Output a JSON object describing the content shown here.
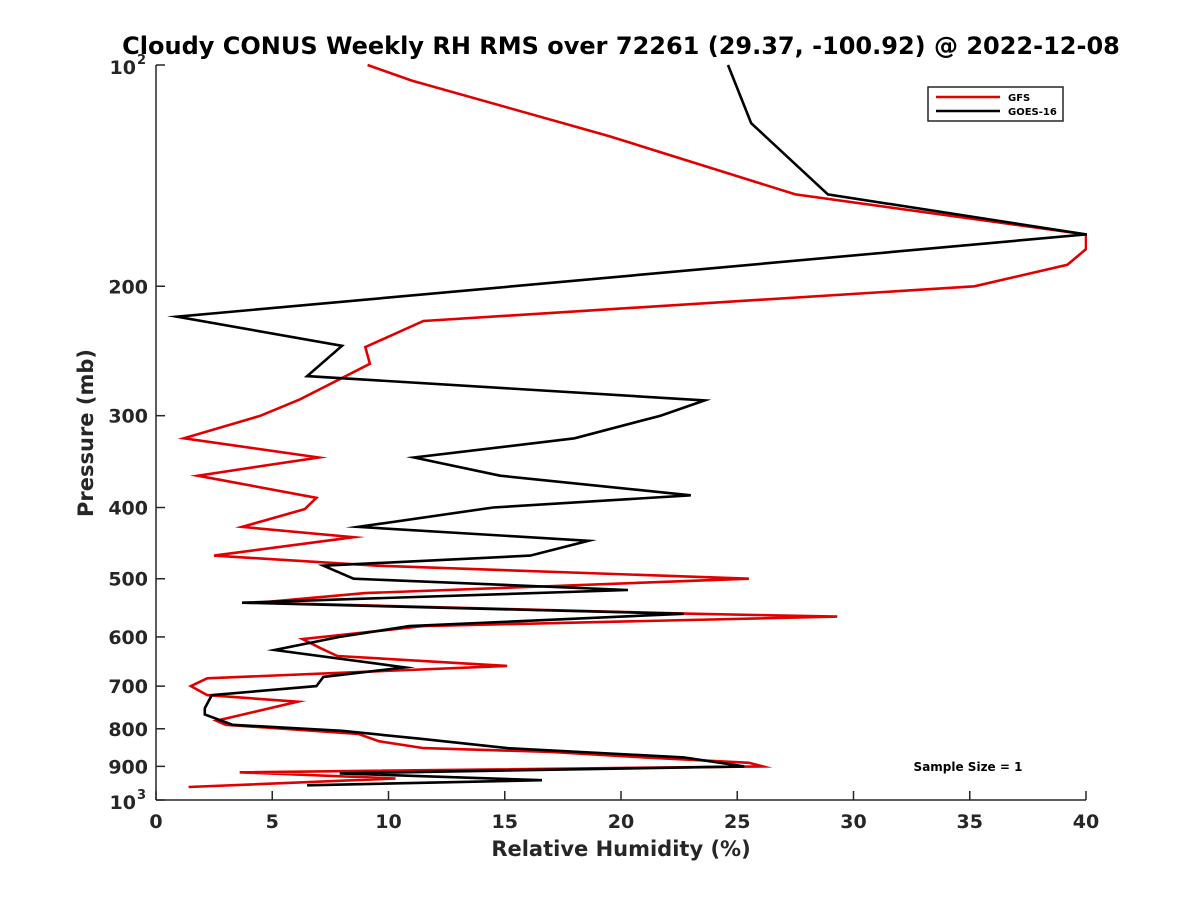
{
  "chart_data": {
    "type": "line",
    "title": "Cloudy CONUS Weekly RH RMS over 72261 (29.37, -100.92) @ 2022-12-08",
    "xlabel": "Relative Humidity (%)",
    "ylabel": "Pressure (mb)",
    "xlim": [
      0,
      40
    ],
    "ylim": [
      100,
      1000
    ],
    "y_scale": "log",
    "y_reversed": true,
    "grid": false,
    "legend_position": "top-right",
    "x_ticks": [
      "0",
      "5",
      "10",
      "15",
      "20",
      "25",
      "30",
      "35",
      "40"
    ],
    "y_ticks": [
      {
        "value": 100,
        "base": "10",
        "exp": "2"
      },
      {
        "value": 200,
        "label": "200"
      },
      {
        "value": 300,
        "label": "300"
      },
      {
        "value": 400,
        "label": "400"
      },
      {
        "value": 500,
        "label": "500"
      },
      {
        "value": 600,
        "label": "600"
      },
      {
        "value": 700,
        "label": "700"
      },
      {
        "value": 800,
        "label": "800"
      },
      {
        "value": 900,
        "label": "900"
      },
      {
        "value": 1000,
        "base": "10",
        "exp": "3"
      }
    ],
    "annotation": "Sample Size = 1",
    "series": [
      {
        "name": "GFS",
        "color": "#e00000",
        "points": [
          [
            9.1,
            100
          ],
          [
            11.0,
            105
          ],
          [
            19.5,
            125
          ],
          [
            27.5,
            150
          ],
          [
            40.0,
            170
          ],
          [
            40.0,
            178
          ],
          [
            39.2,
            187
          ],
          [
            35.2,
            200
          ],
          [
            11.5,
            223
          ],
          [
            9.0,
            242
          ],
          [
            9.2,
            255
          ],
          [
            6.2,
            285
          ],
          [
            4.5,
            300
          ],
          [
            1.2,
            322
          ],
          [
            7.0,
            342
          ],
          [
            1.8,
            362
          ],
          [
            6.9,
            388
          ],
          [
            6.4,
            402
          ],
          [
            3.7,
            425
          ],
          [
            8.5,
            439
          ],
          [
            2.5,
            465
          ],
          [
            9.5,
            480
          ],
          [
            25.5,
            500
          ],
          [
            9.0,
            523
          ],
          [
            4.4,
            539
          ],
          [
            23.2,
            558
          ],
          [
            29.3,
            563
          ],
          [
            11.5,
            580
          ],
          [
            6.3,
            604
          ],
          [
            7.1,
            622
          ],
          [
            7.8,
            637
          ],
          [
            15.1,
            657
          ],
          [
            2.2,
            683
          ],
          [
            1.5,
            700
          ],
          [
            2.2,
            720
          ],
          [
            6.1,
            735
          ],
          [
            2.6,
            780
          ],
          [
            3.0,
            790
          ],
          [
            8.7,
            813
          ],
          [
            9.6,
            832
          ],
          [
            11.5,
            850
          ],
          [
            17.0,
            860
          ],
          [
            21.0,
            875
          ],
          [
            25.5,
            890
          ],
          [
            26.1,
            900
          ],
          [
            3.6,
            917
          ],
          [
            10.3,
            935
          ],
          [
            1.4,
            960
          ]
        ]
      },
      {
        "name": "GOES-16",
        "color": "#000000",
        "points": [
          [
            24.6,
            100
          ],
          [
            25.6,
            120
          ],
          [
            28.9,
            150
          ],
          [
            40.0,
            170
          ],
          [
            0.9,
            220
          ],
          [
            8.0,
            241
          ],
          [
            6.5,
            265
          ],
          [
            23.6,
            286
          ],
          [
            21.7,
            300
          ],
          [
            18.0,
            322
          ],
          [
            11.1,
            342
          ],
          [
            14.8,
            362
          ],
          [
            23.0,
            385
          ],
          [
            14.5,
            400
          ],
          [
            8.7,
            425
          ],
          [
            18.6,
            444
          ],
          [
            16.1,
            465
          ],
          [
            7.2,
            480
          ],
          [
            8.5,
            500
          ],
          [
            20.3,
            518
          ],
          [
            3.7,
            539
          ],
          [
            22.7,
            558
          ],
          [
            10.9,
            580
          ],
          [
            7.9,
            600
          ],
          [
            5.1,
            625
          ],
          [
            10.7,
            660
          ],
          [
            7.2,
            680
          ],
          [
            6.9,
            700
          ],
          [
            2.4,
            720
          ],
          [
            2.1,
            750
          ],
          [
            2.1,
            765
          ],
          [
            3.3,
            790
          ],
          [
            8.0,
            805
          ],
          [
            11.3,
            825
          ],
          [
            15.1,
            850
          ],
          [
            22.7,
            875
          ],
          [
            25.3,
            900
          ],
          [
            7.9,
            920
          ],
          [
            16.6,
            940
          ],
          [
            6.5,
            955
          ]
        ]
      }
    ]
  }
}
